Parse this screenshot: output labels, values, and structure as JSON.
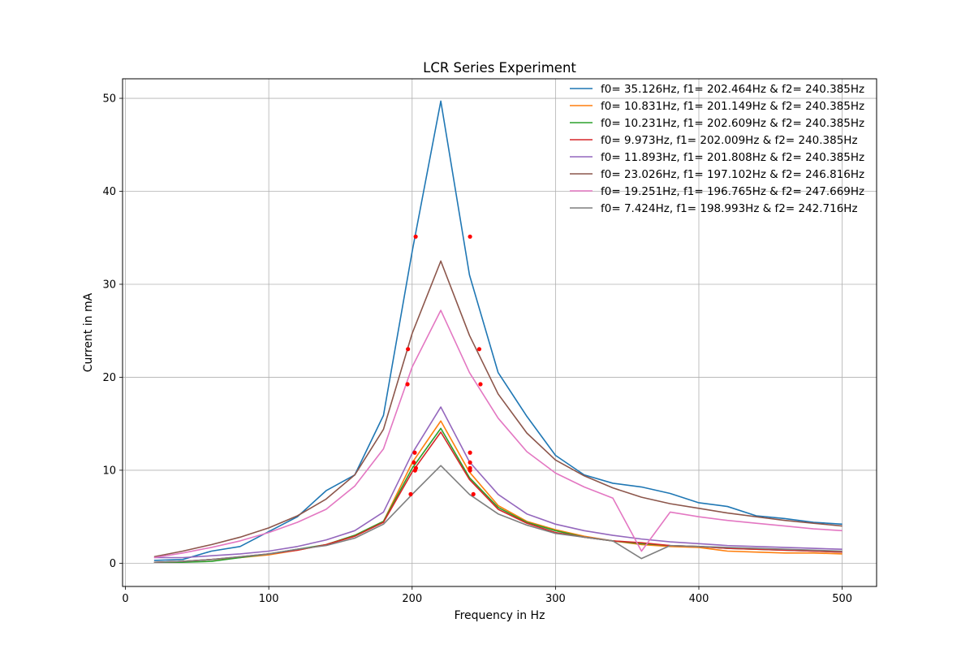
{
  "chart_data": {
    "type": "line",
    "title": "LCR Series Experiment",
    "xlabel": "Frequency in Hz",
    "ylabel": "Current in mA",
    "xlim": [
      -2,
      524
    ],
    "ylim": [
      -2.5,
      52.1
    ],
    "xticks": [
      0,
      100,
      200,
      300,
      400,
      500
    ],
    "yticks": [
      0,
      10,
      20,
      30,
      40,
      50
    ],
    "grid": true,
    "legend_position": "top-right",
    "x": [
      20,
      40,
      60,
      80,
      100,
      120,
      140,
      160,
      180,
      200,
      220,
      240,
      260,
      280,
      300,
      320,
      340,
      360,
      380,
      400,
      420,
      440,
      460,
      480,
      500
    ],
    "series": [
      {
        "name": "f0= 35.126Hz, f1= 202.464Hz & f2= 240.385Hz",
        "color": "#1f77b4",
        "values": [
          0.3,
          0.4,
          1.3,
          1.8,
          3.4,
          5.0,
          7.8,
          9.5,
          15.9,
          33.5,
          49.7,
          31.0,
          20.5,
          15.8,
          11.6,
          9.5,
          8.6,
          8.2,
          7.5,
          6.5,
          6.1,
          5.1,
          4.8,
          4.4,
          4.2
        ],
        "markers": [
          [
            202.464,
            35.126
          ],
          [
            240.385,
            35.126
          ]
        ]
      },
      {
        "name": "f0= 10.831Hz, f1= 201.149Hz & f2= 240.385Hz",
        "color": "#ff7f0e",
        "values": [
          0.1,
          0.2,
          0.4,
          0.6,
          0.9,
          1.4,
          2.0,
          3.0,
          4.5,
          10.8,
          15.3,
          9.8,
          6.2,
          4.5,
          3.6,
          2.9,
          2.4,
          2.0,
          1.8,
          1.7,
          1.3,
          1.2,
          1.1,
          1.1,
          1.0
        ],
        "markers": [
          [
            201.149,
            10.831
          ],
          [
            240.385,
            10.831
          ]
        ]
      },
      {
        "name": "f0= 10.231Hz, f1= 202.609Hz & f2= 240.385Hz",
        "color": "#2ca02c",
        "values": [
          0.1,
          0.1,
          0.2,
          0.6,
          1.0,
          1.5,
          2.0,
          3.0,
          4.5,
          10.2,
          14.5,
          9.2,
          6.0,
          4.4,
          3.5,
          2.8,
          2.4,
          2.1,
          1.9,
          1.8,
          1.6,
          1.5,
          1.4,
          1.3,
          1.2
        ],
        "markers": [
          [
            202.609,
            10.231
          ],
          [
            240.385,
            10.231
          ]
        ]
      },
      {
        "name": "f0= 9.973Hz, f1= 202.009Hz & f2= 240.385Hz",
        "color": "#d62728",
        "values": [
          0.1,
          0.2,
          0.4,
          0.7,
          1.0,
          1.4,
          2.0,
          2.9,
          4.4,
          9.8,
          14.1,
          9.0,
          5.8,
          4.3,
          3.3,
          2.8,
          2.4,
          2.2,
          1.9,
          1.8,
          1.6,
          1.5,
          1.4,
          1.3,
          1.2
        ],
        "markers": [
          [
            202.009,
            9.973
          ],
          [
            240.385,
            9.973
          ]
        ]
      },
      {
        "name": "f0= 11.893Hz, f1= 201.808Hz & f2= 240.385Hz",
        "color": "#9467bd",
        "values": [
          0.6,
          0.6,
          0.8,
          1.0,
          1.3,
          1.8,
          2.5,
          3.5,
          5.5,
          11.8,
          16.8,
          10.9,
          7.4,
          5.3,
          4.2,
          3.5,
          3.0,
          2.6,
          2.3,
          2.1,
          1.9,
          1.8,
          1.7,
          1.6,
          1.5
        ],
        "markers": [
          [
            201.808,
            11.893
          ],
          [
            240.385,
            11.893
          ]
        ]
      },
      {
        "name": "f0= 23.026Hz, f1= 197.102Hz & f2= 246.816Hz",
        "color": "#8c564b",
        "values": [
          0.7,
          1.3,
          2.0,
          2.8,
          3.8,
          5.1,
          6.9,
          9.5,
          14.4,
          24.7,
          32.5,
          24.5,
          18.2,
          14.0,
          11.1,
          9.4,
          8.1,
          7.1,
          6.4,
          5.9,
          5.4,
          5.0,
          4.6,
          4.3,
          4.0
        ],
        "markers": [
          [
            197.102,
            23.026
          ],
          [
            246.816,
            23.026
          ]
        ]
      },
      {
        "name": "f0= 19.251Hz, f1= 196.765Hz & f2= 247.669Hz",
        "color": "#e377c2",
        "values": [
          0.6,
          1.1,
          1.7,
          2.4,
          3.3,
          4.4,
          5.8,
          8.3,
          12.3,
          21.1,
          27.2,
          20.5,
          15.6,
          12.0,
          9.7,
          8.2,
          7.0,
          1.3,
          5.5,
          5.0,
          4.6,
          4.3,
          4.0,
          3.7,
          3.5
        ],
        "markers": [
          [
            196.765,
            19.251
          ],
          [
            247.669,
            19.251
          ]
        ]
      },
      {
        "name": "f0= 7.424Hz, f1= 198.993Hz & f2= 242.716Hz",
        "color": "#7f7f7f",
        "values": [
          0.1,
          0.2,
          0.4,
          0.7,
          1.0,
          1.5,
          1.9,
          2.7,
          4.2,
          7.4,
          10.5,
          7.4,
          5.3,
          4.1,
          3.2,
          2.8,
          2.4,
          0.5,
          1.9,
          1.8,
          1.7,
          1.6,
          1.5,
          1.4,
          1.3
        ],
        "markers": [
          [
            198.993,
            7.424
          ],
          [
            242.716,
            7.424
          ]
        ]
      }
    ]
  }
}
